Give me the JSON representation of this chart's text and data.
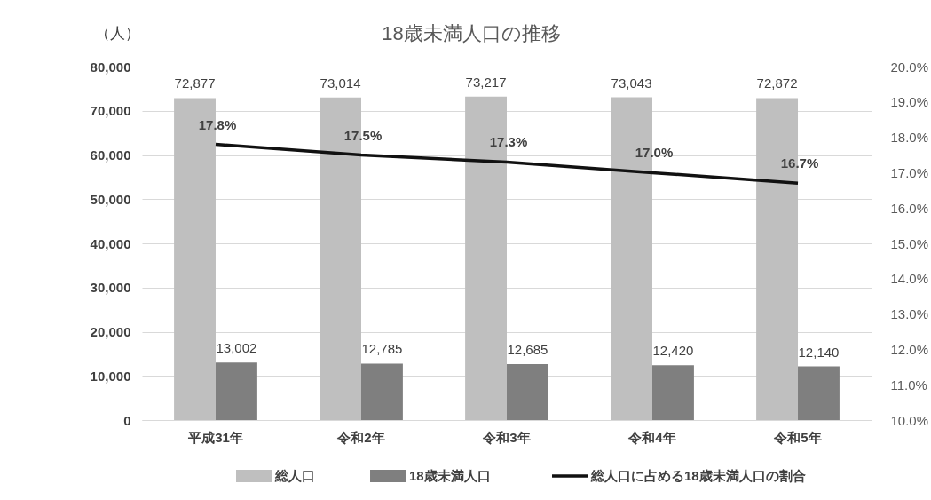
{
  "chart_data": {
    "type": "bar",
    "title": "18歳未満人口の推移",
    "ylabel": "（人）",
    "categories": [
      "平成31年",
      "令和2年",
      "令和3年",
      "令和4年",
      "令和5年"
    ],
    "series": [
      {
        "name": "総人口",
        "type": "bar",
        "color": "#bfbfbf",
        "values": [
          72877,
          73014,
          73217,
          73043,
          72872
        ],
        "value_labels": [
          "72,877",
          "73,014",
          "73,217",
          "73,043",
          "72,872"
        ]
      },
      {
        "name": "18歳未満人口",
        "type": "bar",
        "color": "#7f7f7f",
        "values": [
          13002,
          12785,
          12685,
          12420,
          12140
        ],
        "value_labels": [
          "13,002",
          "12,785",
          "12,685",
          "12,420",
          "12,140"
        ]
      },
      {
        "name": "総人口に占める18歳未満人口の割合",
        "type": "line",
        "axis": "y2",
        "color": "#111111",
        "values": [
          17.8,
          17.5,
          17.3,
          17.0,
          16.7
        ],
        "value_labels": [
          "17.8%",
          "17.5%",
          "17.3%",
          "17.0%",
          "16.7%"
        ]
      }
    ],
    "ylim": [
      0,
      80000
    ],
    "yticks": [
      0,
      {
        "value": 10000,
        "label": "10,000"
      },
      {
        "value": 20000,
        "label": "20,000"
      },
      {
        "value": 30000,
        "label": "30,000"
      },
      {
        "value": 40000,
        "label": "40,000"
      },
      {
        "value": 50000,
        "label": "50,000"
      },
      {
        "value": 60000,
        "label": "60,000"
      },
      {
        "value": 70000,
        "label": "70,000"
      },
      {
        "value": 80000,
        "label": "80,000"
      }
    ],
    "y2lim": [
      10,
      20
    ],
    "y2ticks": [
      {
        "value": 10,
        "label": "10.0%"
      },
      {
        "value": 11,
        "label": "11.0%"
      },
      {
        "value": 12,
        "label": "12.0%"
      },
      {
        "value": 13,
        "label": "13.0%"
      },
      {
        "value": 14,
        "label": "14.0%"
      },
      {
        "value": 15,
        "label": "15.0%"
      },
      {
        "value": 16,
        "label": "16.0%"
      },
      {
        "value": 17,
        "label": "17.0%"
      },
      {
        "value": 18,
        "label": "18.0%"
      },
      {
        "value": 19,
        "label": "19.0%"
      },
      {
        "value": 20,
        "label": "20.0%"
      }
    ],
    "grid": "y",
    "legend": "bottom"
  }
}
